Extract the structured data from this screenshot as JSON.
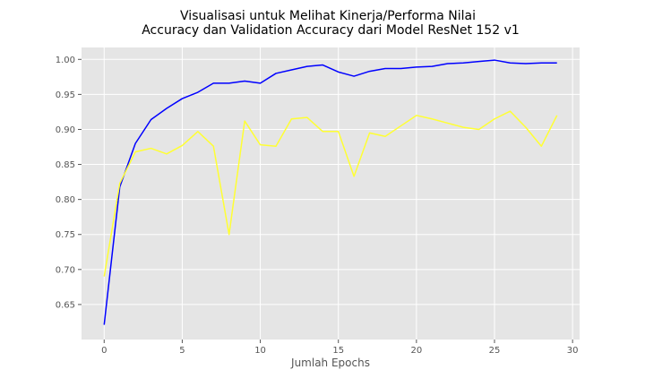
{
  "chart_data": {
    "type": "line",
    "title_lines": [
      "Visualisasi untuk Melihat Kinerja/Performa Nilai",
      "Accuracy dan Validation Accuracy dari Model ResNet 152 v1"
    ],
    "xlabel": "Jumlah Epochs",
    "ylabel": "",
    "xlim": [
      -1.45,
      30.45
    ],
    "ylim": [
      0.6,
      1.017
    ],
    "xticks": [
      0,
      5,
      10,
      15,
      20,
      25,
      30
    ],
    "yticks": [
      0.65,
      0.7,
      0.75,
      0.8,
      0.85,
      0.9,
      0.95,
      1.0
    ],
    "xtick_labels": [
      "0",
      "5",
      "10",
      "15",
      "20",
      "25",
      "30"
    ],
    "ytick_labels": [
      "0.65",
      "0.70",
      "0.75",
      "0.80",
      "0.85",
      "0.90",
      "0.95",
      "1.00"
    ],
    "grid": true,
    "legend": "none",
    "x": [
      0,
      1,
      2,
      3,
      4,
      5,
      6,
      7,
      8,
      9,
      10,
      11,
      12,
      13,
      14,
      15,
      16,
      17,
      18,
      19,
      20,
      21,
      22,
      23,
      24,
      25,
      26,
      27,
      28,
      29
    ],
    "series": [
      {
        "color": "#0000ff",
        "values": [
          0.621,
          0.818,
          0.88,
          0.914,
          0.93,
          0.944,
          0.953,
          0.966,
          0.966,
          0.969,
          0.966,
          0.98,
          0.985,
          0.99,
          0.992,
          0.982,
          0.976,
          0.983,
          0.987,
          0.987,
          0.989,
          0.99,
          0.994,
          0.995,
          0.997,
          0.999,
          0.995,
          0.994,
          0.995,
          0.995
        ]
      },
      {
        "color": "#ffff33",
        "values": [
          0.69,
          0.823,
          0.868,
          0.873,
          0.865,
          0.877,
          0.897,
          0.876,
          0.75,
          0.912,
          0.878,
          0.876,
          0.915,
          0.917,
          0.897,
          0.897,
          0.833,
          0.895,
          0.89,
          0.905,
          0.92,
          0.915,
          0.909,
          0.903,
          0.9,
          0.915,
          0.926,
          0.903,
          0.876,
          0.92
        ]
      }
    ],
    "colors": {
      "plot_background": "#e5e5e5",
      "grid": "#ffffff",
      "tick_text": "#555555",
      "title_text": "#000000"
    }
  }
}
